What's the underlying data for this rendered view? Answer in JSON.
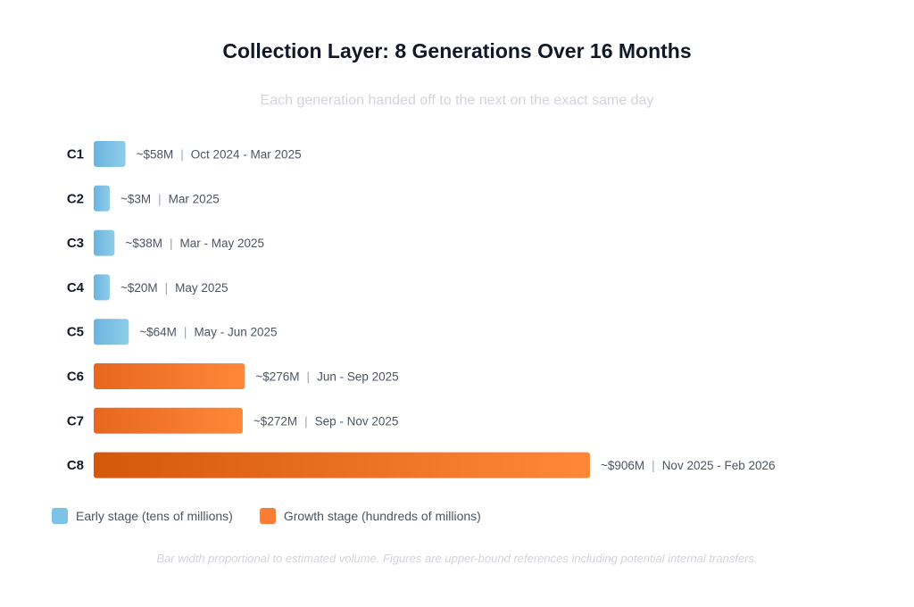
{
  "chart_data": {
    "type": "bar",
    "orientation": "horizontal",
    "title": "Collection Layer: 8 Generations Over 16 Months",
    "subtitle": "Each generation handed off to the next on the exact same day",
    "categories": [
      "C1",
      "C2",
      "C3",
      "C4",
      "C5",
      "C6",
      "C7",
      "C8"
    ],
    "values": [
      58,
      3,
      38,
      20,
      64,
      276,
      272,
      906
    ],
    "value_labels": [
      "~$58M",
      "~$3M",
      "~$38M",
      "~$20M",
      "~$64M",
      "~$276M",
      "~$272M",
      "~$906M"
    ],
    "date_labels": [
      "Oct 2024 - Mar 2025",
      "Mar 2025",
      "Mar - May 2025",
      "May 2025",
      "May - Jun 2025",
      "Jun - Sep 2025",
      "Sep - Nov 2025",
      "Nov 2025 - Feb 2026"
    ],
    "stages": [
      "early",
      "early",
      "early",
      "early",
      "early",
      "growth",
      "growth",
      "growth"
    ],
    "legend": [
      {
        "key": "early",
        "label": "Early stage (tens of millions)",
        "color": "#7dc3e8"
      },
      {
        "key": "growth",
        "label": "Growth stage (hundreds of millions)",
        "color": "#fb7d33"
      }
    ],
    "colors": {
      "early_start": "#6cb4df",
      "early_end": "#8ecde9",
      "growth_start": "#e8661f",
      "growth_end": "#ff8838",
      "growth_dark_start": "#d4580a"
    },
    "footnote": "Bar width proportional to estimated volume. Figures are upper-bound references including potential internal transfers."
  }
}
